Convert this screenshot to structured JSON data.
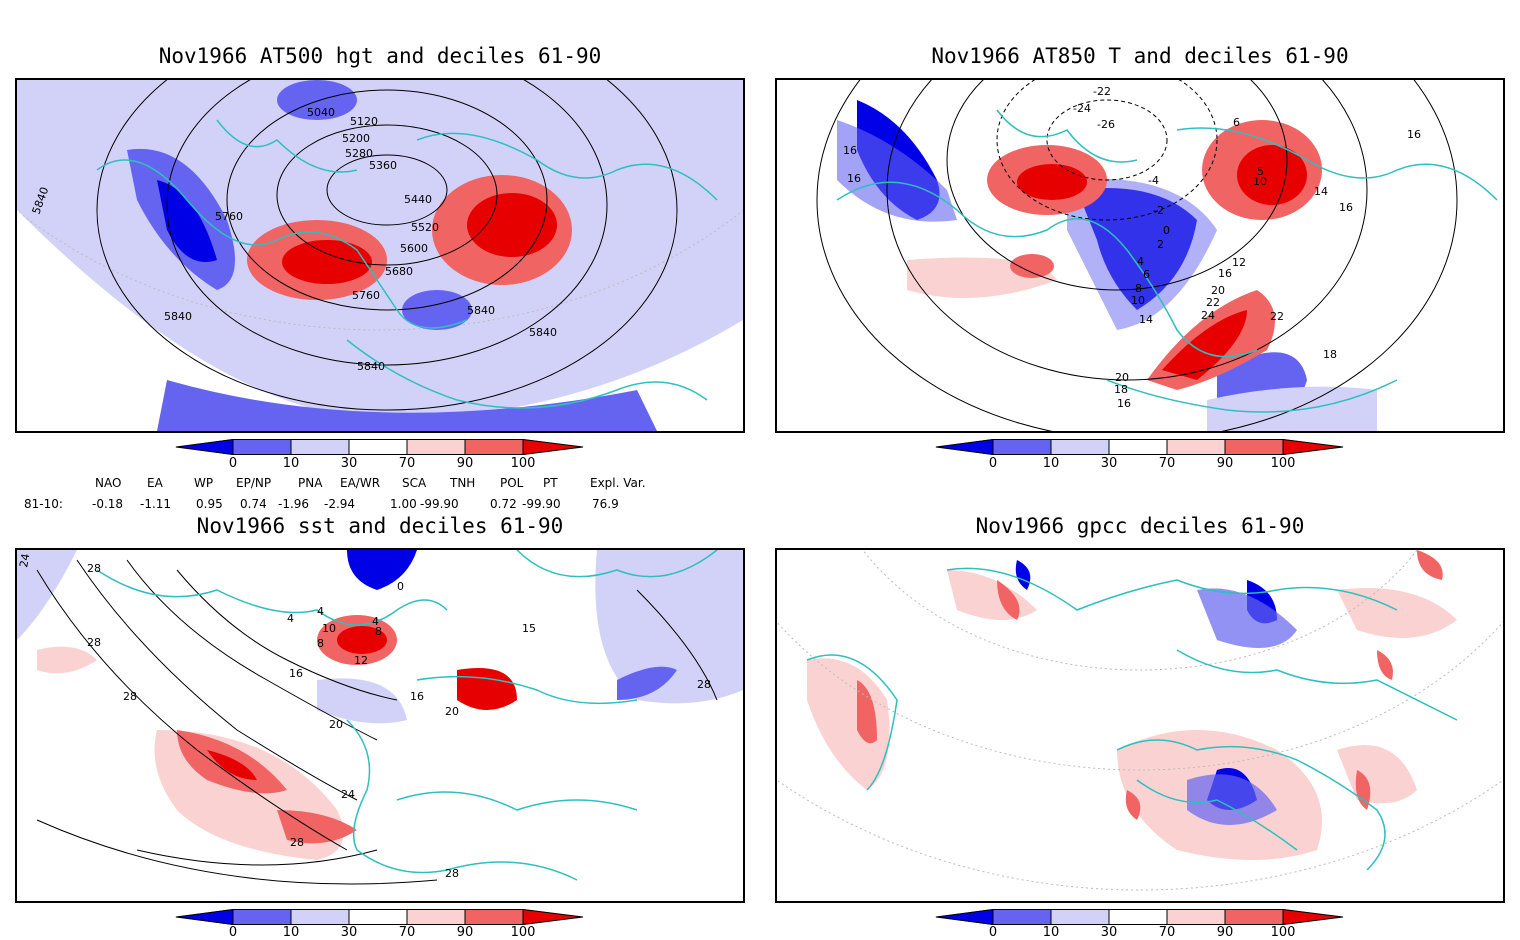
{
  "panels": [
    {
      "id": "p1",
      "title": "Nov1966 AT500 hgt and deciles 61-90",
      "contour_labels": [
        "5040",
        "5120",
        "5200",
        "5280",
        "5360",
        "5440",
        "5520",
        "5600",
        "5680",
        "5760",
        "5760",
        "5840",
        "5840",
        "5840",
        "5840",
        "5840"
      ]
    },
    {
      "id": "p2",
      "title": "Nov1966 AT850 T and deciles 61-90",
      "contour_labels": [
        "-22",
        "-24",
        "-26",
        "-4",
        "-2",
        "0",
        "2",
        "4",
        "6",
        "8",
        "10",
        "14",
        "16",
        "16",
        "16",
        "16",
        "14",
        "12",
        "16",
        "20",
        "22",
        "24",
        "22",
        "20",
        "18",
        "18",
        "16",
        "6",
        "10",
        "5"
      ]
    },
    {
      "id": "p3",
      "title": "Nov1966 sst and deciles 61-90",
      "contour_labels": [
        "24",
        "28",
        "28",
        "28",
        "4",
        "8",
        "12",
        "16",
        "16",
        "20",
        "20",
        "24",
        "28",
        "28",
        "28",
        "0",
        "4",
        "4",
        "8",
        "10",
        "15"
      ]
    },
    {
      "id": "p4",
      "title": "Nov1966 gpcc deciles 61-90",
      "contour_labels": []
    }
  ],
  "colorbar": {
    "labels": [
      "0",
      "10",
      "30",
      "70",
      "90",
      "100"
    ],
    "colors": [
      "#0000e6",
      "#6464f0",
      "#d2d2f8",
      "#ffffff",
      "#fad2d2",
      "#f06464",
      "#e60000"
    ]
  },
  "indices": {
    "headers": [
      "NAO",
      "EA",
      "WP",
      "EP/NP",
      "PNA",
      "EA/WR",
      "SCA",
      "TNH",
      "POL",
      "PT",
      "Expl. Var."
    ],
    "row_label": "81-10:",
    "values": [
      "-0.18",
      "-1.11",
      "0.95",
      "0.74",
      "-1.96",
      "-2.94",
      "1.00",
      "-99.90",
      "0.72",
      "-99.90",
      "76.9"
    ]
  },
  "colors": {
    "coast": "#2fbfbf",
    "contour": "#000000",
    "grid": "#bbbbbb"
  }
}
